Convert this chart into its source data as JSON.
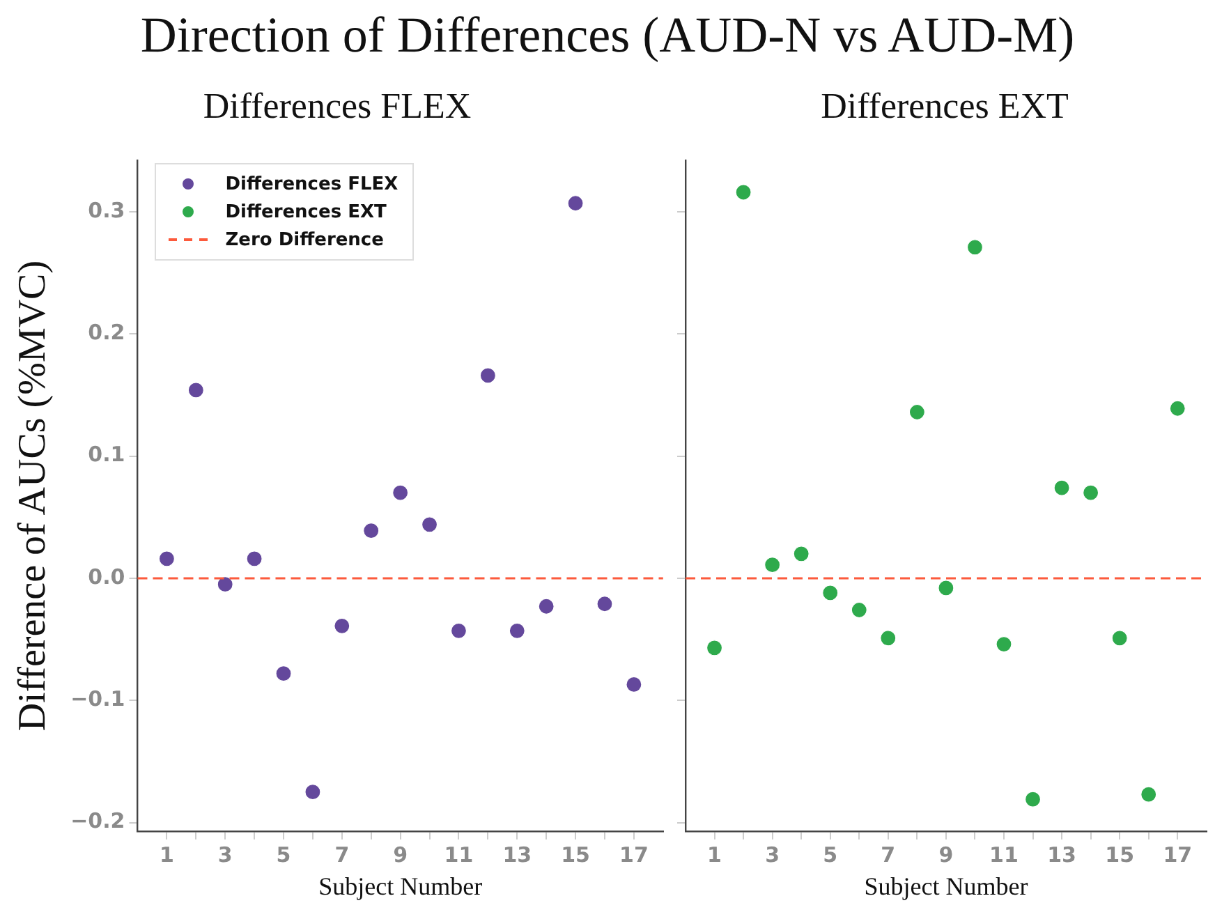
{
  "chart_data": [
    {
      "type": "scatter",
      "title": "Direction of Differences (AUD-N vs AUD-M)",
      "subtitle": "Differences FLEX",
      "xlabel": "Subject Number",
      "ylabel": "Difference of AUCs (%MVC)",
      "x": [
        1,
        2,
        3,
        4,
        5,
        6,
        7,
        8,
        9,
        10,
        11,
        12,
        13,
        14,
        15,
        16,
        17
      ],
      "series": [
        {
          "name": "Differences FLEX",
          "color": "#64489c",
          "values": [
            0.016,
            0.154,
            -0.005,
            0.016,
            -0.078,
            -0.175,
            -0.039,
            0.039,
            0.07,
            0.044,
            -0.043,
            0.166,
            -0.043,
            -0.023,
            0.307,
            -0.021,
            -0.087
          ]
        }
      ],
      "xlim": [
        0,
        18
      ],
      "ylim": [
        -0.207,
        0.342
      ],
      "xticks": [
        1,
        {
          "value": 2,
          "label": null
        },
        3,
        {
          "value": 4,
          "label": null
        },
        5,
        {
          "value": 6,
          "label": null
        },
        7,
        {
          "value": 8,
          "label": null
        },
        9,
        {
          "value": 10,
          "label": null
        },
        11,
        {
          "value": 12,
          "label": null
        },
        13,
        {
          "value": 14,
          "label": null
        },
        15,
        {
          "value": 16,
          "label": null
        },
        17
      ],
      "yticks": [
        {
          "value": -0.2,
          "label": "−0.2"
        },
        {
          "value": -0.1,
          "label": "−0.1"
        },
        {
          "value": 0,
          "label": "0.0"
        },
        0.1,
        0.2,
        0.3
      ],
      "ref_lines": [
        {
          "axis": "y",
          "value": 0,
          "label": "Zero Difference",
          "color": "#fc5a3c",
          "line_style": "dashed"
        }
      ],
      "marker": "circle",
      "grid": false,
      "legend": "top left"
    },
    {
      "type": "scatter",
      "subtitle": "Differences EXT",
      "xlabel": "Subject Number",
      "x": [
        1,
        2,
        3,
        4,
        5,
        6,
        7,
        8,
        9,
        10,
        11,
        12,
        13,
        14,
        15,
        16,
        17
      ],
      "series": [
        {
          "name": "Differences EXT",
          "color": "#2eaa4c",
          "values": [
            -0.057,
            0.316,
            0.011,
            0.02,
            -0.012,
            -0.026,
            -0.049,
            0.136,
            -0.008,
            0.271,
            -0.054,
            -0.181,
            0.074,
            0.07,
            -0.049,
            -0.177,
            0.139
          ]
        }
      ],
      "xlim": [
        0,
        18
      ],
      "ylim": [
        -0.207,
        0.342
      ],
      "xticks": [
        1,
        {
          "value": 2,
          "label": null
        },
        3,
        {
          "value": 4,
          "label": null
        },
        5,
        {
          "value": 6,
          "label": null
        },
        7,
        {
          "value": 8,
          "label": null
        },
        9,
        {
          "value": 10,
          "label": null
        },
        11,
        {
          "value": 12,
          "label": null
        },
        13,
        {
          "value": 14,
          "label": null
        },
        15,
        {
          "value": 16,
          "label": null
        },
        17
      ],
      "yticks": [
        {
          "value": -0.2,
          "label": null
        },
        {
          "value": -0.1,
          "label": null
        },
        {
          "value": 0,
          "label": null
        },
        {
          "value": 0.1,
          "label": null
        },
        {
          "value": 0.2,
          "label": null
        },
        {
          "value": 0.3,
          "label": null
        }
      ],
      "ref_lines": [
        {
          "axis": "y",
          "value": 0,
          "color": "#fc5a3c",
          "line_style": "dashed"
        }
      ],
      "marker": "circle",
      "grid": false,
      "tick_labels": "x"
    }
  ]
}
